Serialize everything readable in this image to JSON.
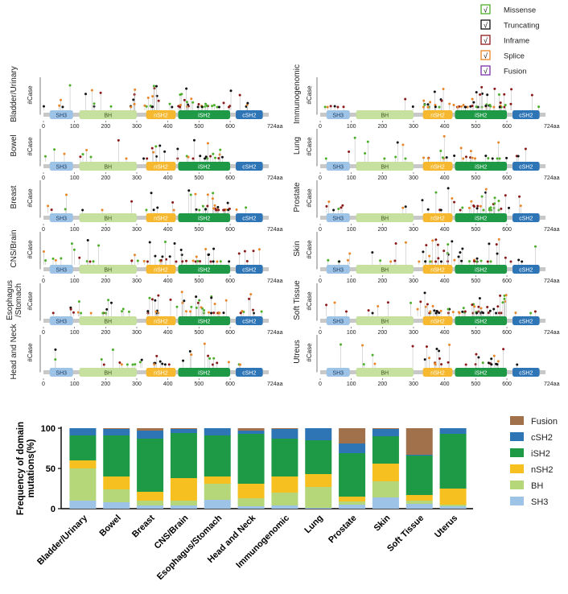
{
  "legend_top": [
    {
      "label": "Missense",
      "color": "#4caf2a",
      "check": "√"
    },
    {
      "label": "Truncating",
      "color": "#111111",
      "check": "√"
    },
    {
      "label": "Inframe",
      "color": "#8b1a1a",
      "check": "√"
    },
    {
      "label": "Splice",
      "color": "#e8862a",
      "check": "√"
    },
    {
      "label": "Fusion",
      "color": "#7b2fa8",
      "check": "√"
    }
  ],
  "lollipop_ylabel": "#Case",
  "domains": [
    {
      "name": "SH3",
      "start": 20,
      "end": 95,
      "color": "#9dc3e6",
      "text": "#1f3d66"
    },
    {
      "name": "BH",
      "start": 115,
      "end": 300,
      "color": "#c6e0a0",
      "text": "#3c5a1e"
    },
    {
      "name": "nSH2",
      "start": 330,
      "end": 425,
      "color": "#f5b82e",
      "text": "#ffffff"
    },
    {
      "name": "iSH2",
      "start": 433,
      "end": 600,
      "color": "#1e9a47",
      "text": "#ffffff"
    },
    {
      "name": "cSH2",
      "start": 618,
      "end": 705,
      "color": "#2e75b6",
      "text": "#ffffff"
    }
  ],
  "protein_axis": {
    "ticks": [
      0,
      100,
      200,
      300,
      400,
      500,
      600
    ],
    "end_label": "724aa"
  },
  "tissues_left": [
    "Bladder/Urinary",
    "Bowel",
    "Breast",
    "CNS/Brain",
    "Esophagus\n/Stomach",
    "Head and Neck"
  ],
  "tissues_right": [
    "Immunogenomic",
    "Lung",
    "Prostate",
    "Skin",
    "Soft Tissue",
    "Utreus"
  ],
  "chart_data": {
    "type": "bar",
    "stacked": true,
    "title": "",
    "ylabel": "Frequency of domain mutations(%)",
    "xlabel": "",
    "ylim": [
      0,
      100
    ],
    "yticks": [
      0,
      50,
      100
    ],
    "categories": [
      "Bladder/Urinary",
      "Bowel",
      "Breast",
      "CNS/Brain",
      "Esophagus/Stomach",
      "Head and Neck",
      "Immunogenomic",
      "Lung",
      "Prostate",
      "Skin",
      "Soft Tissue",
      "Uterus"
    ],
    "series": [
      {
        "name": "SH3",
        "color": "#9dc3e6",
        "values": [
          10,
          8,
          4,
          4,
          11,
          3,
          4,
          1,
          5,
          14,
          6,
          3
        ]
      },
      {
        "name": "BH",
        "color": "#b5d77a",
        "values": [
          40,
          16,
          6,
          6,
          20,
          10,
          16,
          26,
          4,
          20,
          4,
          2
        ]
      },
      {
        "name": "nSH2",
        "color": "#f6c021",
        "values": [
          10,
          16,
          11,
          28,
          9,
          18,
          20,
          16,
          6,
          22,
          7,
          20
        ]
      },
      {
        "name": "iSH2",
        "color": "#1e9a47",
        "values": [
          31,
          51,
          66,
          56,
          51,
          62,
          47,
          42,
          54,
          34,
          49,
          68
        ]
      },
      {
        "name": "cSH2",
        "color": "#2e75b6",
        "values": [
          9,
          8,
          10,
          5,
          9,
          4,
          12,
          15,
          12,
          9,
          1,
          7
        ]
      },
      {
        "name": "Fusion",
        "color": "#a0714a",
        "values": [
          0,
          1,
          3,
          1,
          0,
          3,
          1,
          0,
          19,
          1,
          33,
          0
        ]
      }
    ],
    "legend": [
      "Fusion",
      "cSH2",
      "iSH2",
      "nSH2",
      "BH",
      "SH3"
    ],
    "legend_position": "right"
  }
}
